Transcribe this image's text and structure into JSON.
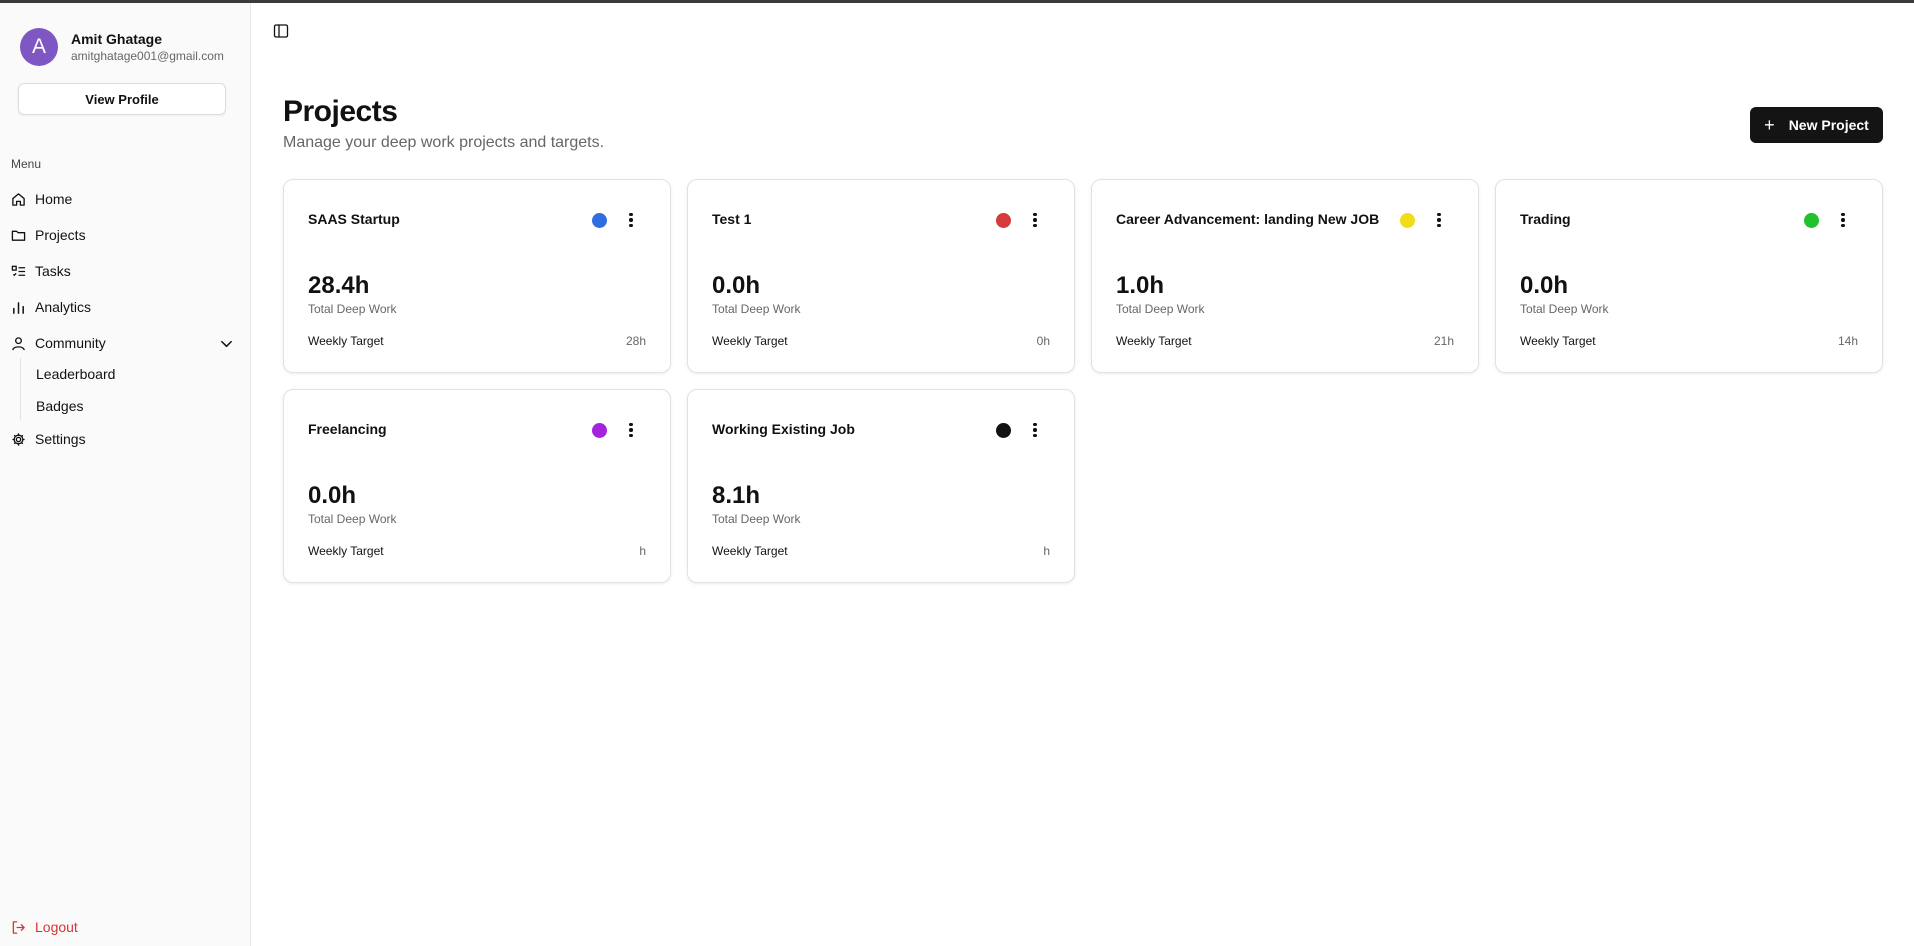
{
  "user": {
    "initial": "A",
    "name": "Amit Ghatage",
    "email": "amitghatage001@gmail.com",
    "view_profile_label": "View Profile"
  },
  "sidebar": {
    "menu_label": "Menu",
    "items": [
      {
        "label": "Home",
        "icon": "home-icon"
      },
      {
        "label": "Projects",
        "icon": "folder-icon"
      },
      {
        "label": "Tasks",
        "icon": "task-list-icon"
      },
      {
        "label": "Analytics",
        "icon": "bar-chart-icon"
      },
      {
        "label": "Community",
        "icon": "user-icon"
      },
      {
        "label": "Settings",
        "icon": "gear-icon"
      }
    ],
    "community_subitems": [
      {
        "label": "Leaderboard"
      },
      {
        "label": "Badges"
      }
    ],
    "logout_label": "Logout"
  },
  "header": {
    "title": "Projects",
    "subtitle": "Manage your deep work projects and targets.",
    "new_project_label": "New Project"
  },
  "projects": [
    {
      "name": "SAAS Startup",
      "color": "#2f6ee0",
      "hours": "28.4h",
      "hours_label": "Total Deep Work",
      "target_label": "Weekly Target",
      "target": "28h"
    },
    {
      "name": "Test 1",
      "color": "#d63b3b",
      "hours": "0.0h",
      "hours_label": "Total Deep Work",
      "target_label": "Weekly Target",
      "target": "0h"
    },
    {
      "name": "Career Advancement: landing New JOB",
      "color": "#f2dc18",
      "hours": "1.0h",
      "hours_label": "Total Deep Work",
      "target_label": "Weekly Target",
      "target": "21h"
    },
    {
      "name": "Trading",
      "color": "#22c12e",
      "hours": "0.0h",
      "hours_label": "Total Deep Work",
      "target_label": "Weekly Target",
      "target": "14h"
    },
    {
      "name": "Freelancing",
      "color": "#a323e0",
      "hours": "0.0h",
      "hours_label": "Total Deep Work",
      "target_label": "Weekly Target",
      "target": "h"
    },
    {
      "name": "Working Existing Job",
      "color": "#111111",
      "hours": "8.1h",
      "hours_label": "Total Deep Work",
      "target_label": "Weekly Target",
      "target": "h"
    }
  ],
  "colors": {
    "logout": "#d93434",
    "avatar": "#7e57c2",
    "primary_button": "#141414"
  }
}
